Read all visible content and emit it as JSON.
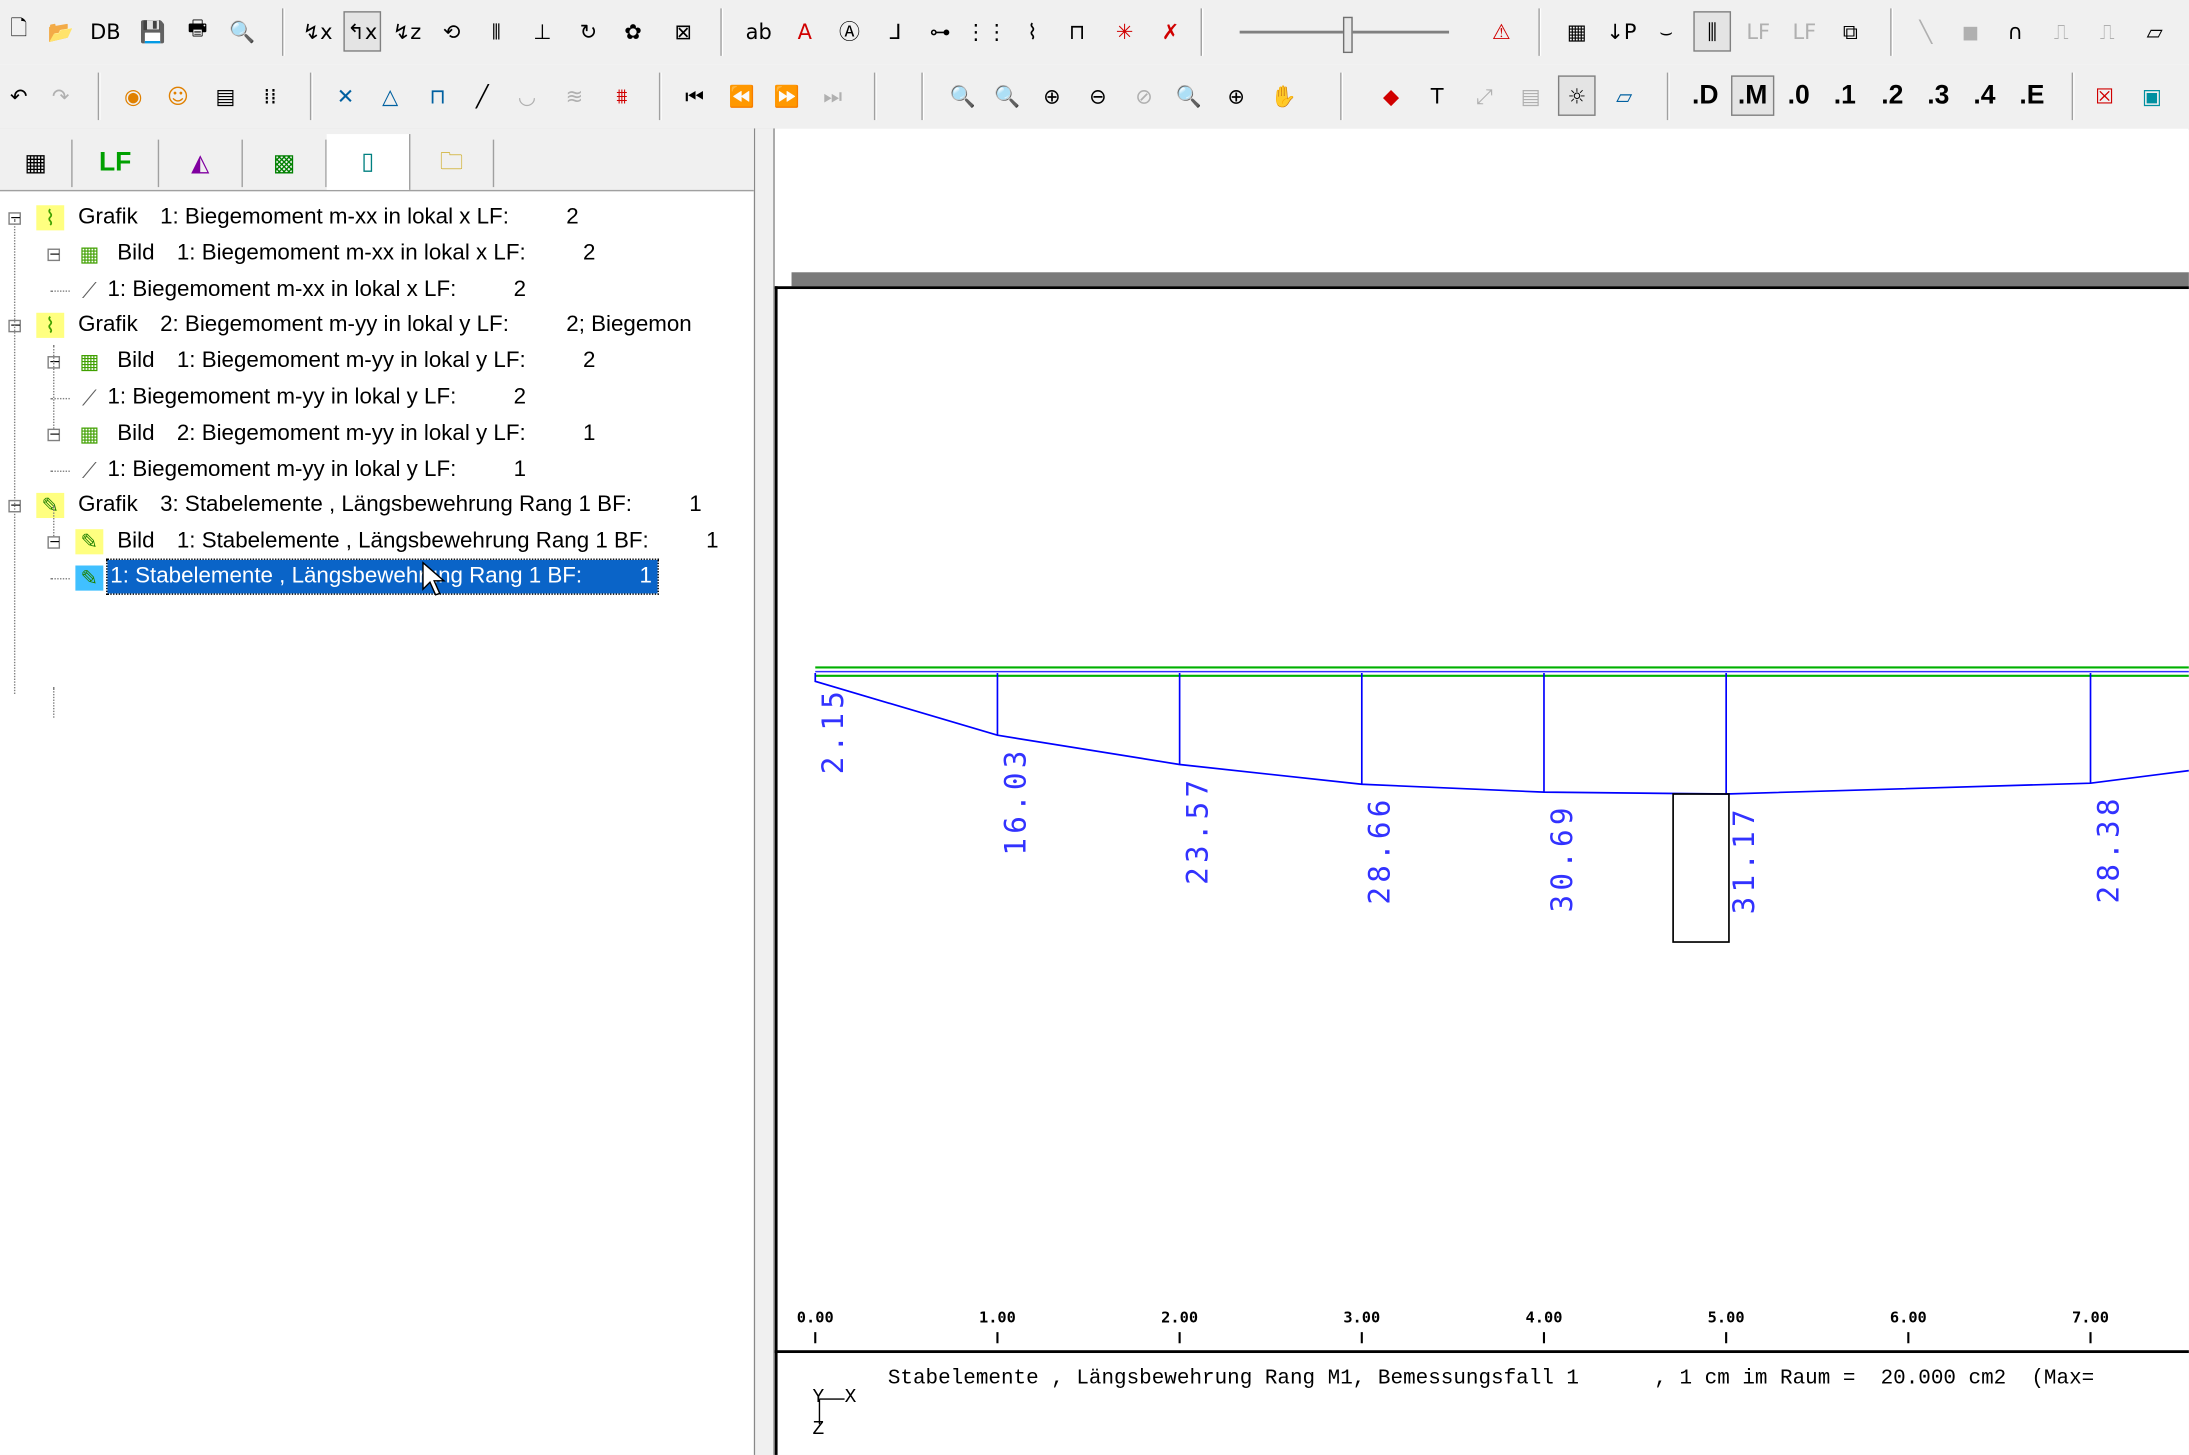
{
  "toolbar1": {
    "buttons": [
      {
        "name": "new-document-icon",
        "glyph": "🗋"
      },
      {
        "name": "open-folder-icon",
        "glyph": "📂"
      },
      {
        "name": "database-icon",
        "glyph": "DB"
      },
      {
        "name": "save-icon",
        "glyph": "💾"
      },
      {
        "name": "print-icon",
        "glyph": "🖶"
      },
      {
        "name": "print-preview-icon",
        "glyph": "🔍"
      },
      {
        "name": "view-x-icon",
        "glyph": "↯x"
      },
      {
        "name": "view-yz-icon",
        "glyph": "↰x"
      },
      {
        "name": "view-z-icon",
        "glyph": "↯z"
      },
      {
        "name": "rotate-icon",
        "glyph": "⟲"
      },
      {
        "name": "mirror-icon",
        "glyph": "⫴"
      },
      {
        "name": "split-icon",
        "glyph": "⊥"
      },
      {
        "name": "reload-icon",
        "glyph": "↻"
      },
      {
        "name": "color-palette-icon",
        "glyph": "✿"
      },
      {
        "name": "grid-off-icon",
        "glyph": "⊠"
      },
      {
        "name": "text-style-icon",
        "glyph": "ab"
      },
      {
        "name": "text-red-icon",
        "glyph": "A"
      },
      {
        "name": "label-search-icon",
        "glyph": "Ⓐ"
      },
      {
        "name": "curve-label-icon",
        "glyph": "⅃"
      },
      {
        "name": "node-link-icon",
        "glyph": "⊶"
      },
      {
        "name": "grid-nodes-icon",
        "glyph": "⋮⋮"
      },
      {
        "name": "polyline-icon",
        "glyph": "⌇"
      },
      {
        "name": "dimension-icon",
        "glyph": "⊓"
      },
      {
        "name": "scatter-red-icon",
        "glyph": "✳"
      },
      {
        "name": "delete-cross-icon",
        "glyph": "✗"
      },
      {
        "name": "warning-icon",
        "glyph": "⚠"
      },
      {
        "name": "table-icon",
        "glyph": "▦"
      },
      {
        "name": "load-p-icon",
        "glyph": "↓P"
      },
      {
        "name": "support-icon",
        "glyph": "⌣"
      },
      {
        "name": "beam-toggle-icon",
        "glyph": "⫼"
      },
      {
        "name": "lf-stack-icon",
        "glyph": "LF"
      },
      {
        "name": "lf-stack-2-icon",
        "glyph": "LF"
      },
      {
        "name": "window-icon",
        "glyph": "⧉"
      },
      {
        "name": "line-tool-icon",
        "glyph": "╲"
      },
      {
        "name": "solid-tool-icon",
        "glyph": "◼"
      },
      {
        "name": "arc-tool-icon",
        "glyph": "∩"
      },
      {
        "name": "frame-tool-icon",
        "glyph": "⎍"
      },
      {
        "name": "frame-tool-2-icon",
        "glyph": "⎍"
      },
      {
        "name": "hatch-tool-icon",
        "glyph": "▱"
      }
    ]
  },
  "toolbar2": {
    "buttons": [
      {
        "name": "undo-icon",
        "glyph": "↶"
      },
      {
        "name": "redo-icon",
        "glyph": "↷"
      },
      {
        "name": "render-color-icon",
        "glyph": "◉"
      },
      {
        "name": "smiley-icon",
        "glyph": "☺"
      },
      {
        "name": "report-icon",
        "glyph": "▤"
      },
      {
        "name": "grid-dots-icon",
        "glyph": "⁞⁞"
      },
      {
        "name": "cross-select-icon",
        "glyph": "✕"
      },
      {
        "name": "triangle-icon",
        "glyph": "△"
      },
      {
        "name": "beam-icon",
        "glyph": "⊓"
      },
      {
        "name": "slash-icon",
        "glyph": "╱"
      },
      {
        "name": "curve-icon",
        "glyph": "◡"
      },
      {
        "name": "spring-icon",
        "glyph": "≋"
      },
      {
        "name": "foundation-icon",
        "glyph": "⩩"
      },
      {
        "name": "first-icon",
        "glyph": "⏮"
      },
      {
        "name": "previous-icon",
        "glyph": "⏪"
      },
      {
        "name": "next-icon",
        "glyph": "⏩"
      },
      {
        "name": "last-icon",
        "glyph": "⏭"
      },
      {
        "name": "zoom-window-icon",
        "glyph": "🔍"
      },
      {
        "name": "zoom-fit-icon",
        "glyph": "🔍"
      },
      {
        "name": "zoom-in-icon",
        "glyph": "⊕"
      },
      {
        "name": "zoom-out-icon",
        "glyph": "⊖"
      },
      {
        "name": "zoom-disabled-icon",
        "glyph": "⊘"
      },
      {
        "name": "zoom-page-icon",
        "glyph": "🔍"
      },
      {
        "name": "zoom-center-icon",
        "glyph": "⊕"
      },
      {
        "name": "pan-hand-icon",
        "glyph": "✋"
      },
      {
        "name": "red-diamond-icon",
        "glyph": "◆"
      },
      {
        "name": "t-section-icon",
        "glyph": "T"
      },
      {
        "name": "link-disabled-icon",
        "glyph": "⤢"
      },
      {
        "name": "layers-icon",
        "glyph": "▤"
      },
      {
        "name": "light-icon",
        "glyph": "☼"
      },
      {
        "name": "plane-icon",
        "glyph": "▱"
      }
    ],
    "precision_buttons": [
      ".D",
      ".M",
      ".0",
      ".1",
      ".2",
      ".3",
      ".4",
      ".E"
    ],
    "end_buttons": [
      {
        "name": "delete-box-icon",
        "glyph": "☒"
      },
      {
        "name": "screen-color-icon",
        "glyph": "▣"
      }
    ]
  },
  "tabs": [
    {
      "name": "tab-structure",
      "glyph": "▦"
    },
    {
      "name": "tab-lf",
      "label": "LF"
    },
    {
      "name": "tab-results",
      "glyph": "◭"
    },
    {
      "name": "tab-graphics",
      "glyph": "▩"
    },
    {
      "name": "tab-pages",
      "glyph": "▯"
    },
    {
      "name": "tab-folder",
      "glyph": "🗀"
    }
  ],
  "tree": [
    {
      "level": 0,
      "icon": "chart-icon",
      "expander": "−",
      "kind": "Grafik",
      "text": "1: Biegemoment m-xx in lokal x  LF:",
      "num": "2",
      "extra": ""
    },
    {
      "level": 1,
      "icon": "image-icon",
      "expander": "−",
      "kind": "Bild",
      "text": "1: Biegemoment m-xx in lokal x  LF:",
      "num": "2",
      "extra": ""
    },
    {
      "level": 2,
      "icon": "diagram-icon",
      "expander": "",
      "kind": "",
      "text": "1: Biegemoment m-xx in lokal x  LF:",
      "num": "2",
      "extra": ""
    },
    {
      "level": 0,
      "icon": "chart-icon",
      "expander": "−",
      "kind": "Grafik",
      "text": "2: Biegemoment m-yy in lokal y  LF:",
      "num": "2",
      "extra": ";  Biegemon"
    },
    {
      "level": 1,
      "icon": "image-icon",
      "expander": "−",
      "kind": "Bild",
      "text": "1: Biegemoment m-yy in lokal y  LF:",
      "num": "2",
      "extra": ""
    },
    {
      "level": 2,
      "icon": "diagram-icon",
      "expander": "",
      "kind": "",
      "text": "1: Biegemoment m-yy in lokal y  LF:",
      "num": "2",
      "extra": ""
    },
    {
      "level": 1,
      "icon": "image-icon",
      "expander": "−",
      "kind": "Bild",
      "text": "2: Biegemoment m-yy in lokal y  LF:",
      "num": "1",
      "extra": ""
    },
    {
      "level": 2,
      "icon": "diagram-icon",
      "expander": "",
      "kind": "",
      "text": "1: Biegemoment m-yy in lokal y  LF:",
      "num": "1",
      "extra": ""
    },
    {
      "level": 0,
      "icon": "reinforcement-icon",
      "expander": "−",
      "kind": "Grafik",
      "text": "3: Stabelemente , Längsbewehrung Rang 1  BF:",
      "num": "1",
      "extra": ""
    },
    {
      "level": 1,
      "icon": "reinforcement-icon",
      "expander": "−",
      "kind": "Bild",
      "text": "1: Stabelemente , Längsbewehrung Rang 1  BF:",
      "num": "1",
      "extra": ""
    },
    {
      "level": 2,
      "icon": "reinforcement-detail-icon",
      "expander": "",
      "kind": "",
      "text": "1: Stabelemente , Längsbewehrung Rang 1  BF:",
      "num": "1",
      "extra": "",
      "selected": true
    }
  ],
  "graphic": {
    "caption": "Stabelemente , Längsbewehrung Rang M1, Bemessungsfall 1      , 1 cm im Raum =  20.000 cm2  (Max=",
    "coord_x": "X",
    "coord_y": "Y",
    "coord_z": "Z",
    "colors": {
      "curve": "#0000ff",
      "labels": "#3232ff",
      "beam_green": "#00b000",
      "beam_blue": "#3030ff",
      "axis": "#000000"
    }
  },
  "chart_data": {
    "type": "line",
    "x": [
      0.0,
      1.0,
      2.0,
      3.0,
      4.0,
      5.0,
      7.0
    ],
    "values": [
      2.15,
      16.03,
      23.57,
      28.66,
      30.69,
      31.17,
      28.38
    ],
    "series": [
      {
        "values": [
          2.15,
          16.03,
          23.57,
          28.66,
          30.69,
          31.17,
          28.38
        ]
      }
    ],
    "x_ticks": [
      "0.00",
      "1.00",
      "2.00",
      "3.00",
      "4.00",
      "5.00",
      "6.00",
      "7.00"
    ],
    "x_tick_values": [
      0,
      1,
      2,
      3,
      4,
      5,
      6,
      7
    ],
    "label_values": [
      "2.15",
      "16.03",
      "23.57",
      "28.66",
      "30.69",
      "31.17",
      "28.38"
    ],
    "max_highlight_index": 5,
    "xlabel": "",
    "ylabel": ""
  }
}
